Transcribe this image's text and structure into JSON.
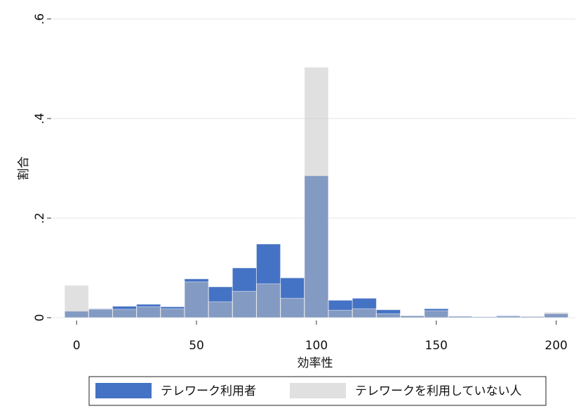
{
  "chart_data": {
    "type": "histogram",
    "x_label": "効率性",
    "y_label": "割合",
    "bins": [
      -5,
      5,
      15,
      25,
      35,
      45,
      55,
      65,
      75,
      85,
      95,
      105,
      115,
      125,
      135,
      145,
      155,
      165,
      175,
      185,
      195,
      205
    ],
    "series": [
      {
        "name": "テレワーク利用者",
        "color": "#4472c4",
        "values": [
          0.013,
          0.018,
          0.023,
          0.027,
          0.022,
          0.078,
          0.062,
          0.1,
          0.148,
          0.08,
          0.285,
          0.035,
          0.039,
          0.016,
          0.004,
          0.018,
          0.003,
          0.002,
          0.004,
          0.002,
          0.008
        ]
      },
      {
        "name": "テレワークを利用していない人",
        "color": "#c2c2c2",
        "values": [
          0.065,
          0.017,
          0.017,
          0.022,
          0.018,
          0.072,
          0.032,
          0.053,
          0.068,
          0.039,
          0.503,
          0.015,
          0.018,
          0.008,
          0.004,
          0.014,
          0.003,
          0.002,
          0.003,
          0.003,
          0.011
        ]
      }
    ],
    "xlim": [
      -10,
      208
    ],
    "ylim": [
      0,
      0.6
    ],
    "xticks": [
      0,
      50,
      100,
      150,
      200
    ],
    "yticks": [
      0,
      {
        "value": 0.2,
        "label": ".2"
      },
      {
        "value": 0.4,
        "label": ".4"
      },
      {
        "value": 0.6,
        "label": ".6"
      }
    ],
    "grid": true
  }
}
